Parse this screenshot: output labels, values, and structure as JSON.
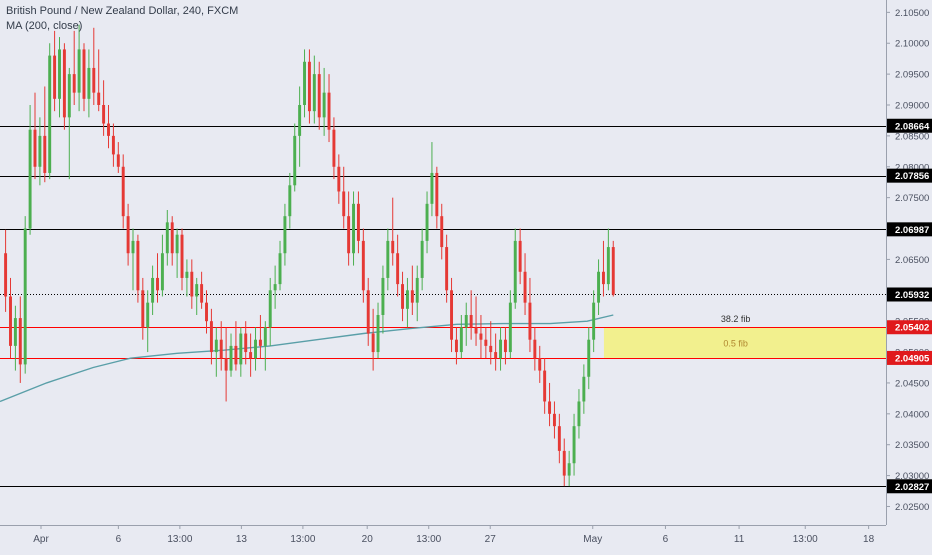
{
  "legend": {
    "symbol_line": "British Pound / New Zealand Dollar, 240, FXCM",
    "ma_line": "MA (200, close)"
  },
  "chart_data": {
    "type": "candlestick",
    "title": "British Pound / New Zealand Dollar, 240, FXCM",
    "indicator": "MA (200, close)",
    "ylim": [
      2.022,
      2.107
    ],
    "y_ticks": [
      2.105,
      2.1,
      2.095,
      2.09,
      2.085,
      2.08,
      2.075,
      2.07,
      2.065,
      2.06,
      2.055,
      2.05,
      2.045,
      2.04,
      2.035,
      2.03,
      2.025
    ],
    "y_tick_labels": [
      "2.10500",
      "2.10000",
      "2.09500",
      "2.09000",
      "2.08500",
      "2.08000",
      "2.07500",
      "2.07000",
      "2.06500",
      "2.06000",
      "2.05500",
      "2.05000",
      "2.04500",
      "2.04000",
      "2.03500",
      "2.03000",
      "2.02500"
    ],
    "x_ticks": [
      {
        "label": "Apr",
        "pos": 0.044
      },
      {
        "label": "6",
        "pos": 0.127
      },
      {
        "label": "13:00",
        "pos": 0.193
      },
      {
        "label": "13",
        "pos": 0.259
      },
      {
        "label": "13:00",
        "pos": 0.325
      },
      {
        "label": "20",
        "pos": 0.394
      },
      {
        "label": "13:00",
        "pos": 0.46
      },
      {
        "label": "27",
        "pos": 0.526
      },
      {
        "label": "May",
        "pos": 0.636
      },
      {
        "label": "6",
        "pos": 0.714
      },
      {
        "label": "11",
        "pos": 0.793
      },
      {
        "label": "13:00",
        "pos": 0.864
      },
      {
        "label": "18",
        "pos": 0.932
      }
    ],
    "horizontal_levels": [
      {
        "value": 2.08664,
        "label": "2.08664",
        "color": "#000000",
        "style": "solid"
      },
      {
        "value": 2.07856,
        "label": "2.07856",
        "color": "#000000",
        "style": "solid"
      },
      {
        "value": 2.06987,
        "label": "2.06987",
        "color": "#000000",
        "style": "solid"
      },
      {
        "value": 2.05932,
        "label": "2.05932",
        "color": "#000000",
        "style": "dotted"
      },
      {
        "value": 2.05402,
        "label": "2.05402",
        "color": "#ff0000",
        "style": "solid"
      },
      {
        "value": 2.04905,
        "label": "2.04905",
        "color": "#ff0000",
        "style": "solid"
      },
      {
        "value": 2.02827,
        "label": "2.02827",
        "color": "#000000",
        "style": "solid"
      }
    ],
    "fib_zone": {
      "top": 2.05402,
      "bottom": 2.04905,
      "x_start": 0.648,
      "x_end": 0.952,
      "color": "#f2f08e",
      "top_label": "38.2 fib",
      "mid_label": "0.5 fib"
    },
    "ma_points": [
      [
        0.0,
        2.042
      ],
      [
        0.05,
        2.045
      ],
      [
        0.1,
        2.0475
      ],
      [
        0.14,
        2.049
      ],
      [
        0.19,
        2.0498
      ],
      [
        0.24,
        2.0503
      ],
      [
        0.29,
        2.051
      ],
      [
        0.34,
        2.052
      ],
      [
        0.39,
        2.053
      ],
      [
        0.44,
        2.0538
      ],
      [
        0.49,
        2.0545
      ],
      [
        0.54,
        2.0546
      ],
      [
        0.59,
        2.0546
      ],
      [
        0.63,
        2.055
      ],
      [
        0.658,
        2.056
      ]
    ],
    "candles": [
      {
        "o": 2.066,
        "h": 2.0698,
        "l": 2.0565,
        "c": 2.059
      },
      {
        "o": 2.059,
        "h": 2.062,
        "l": 2.049,
        "c": 2.051
      },
      {
        "o": 2.051,
        "h": 2.0575,
        "l": 2.047,
        "c": 2.0555
      },
      {
        "o": 2.0555,
        "h": 2.059,
        "l": 2.045,
        "c": 2.048
      },
      {
        "o": 2.048,
        "h": 2.072,
        "l": 2.0465,
        "c": 2.07
      },
      {
        "o": 2.07,
        "h": 2.09,
        "l": 2.069,
        "c": 2.086
      },
      {
        "o": 2.086,
        "h": 2.092,
        "l": 2.078,
        "c": 2.08
      },
      {
        "o": 2.08,
        "h": 2.088,
        "l": 2.077,
        "c": 2.085
      },
      {
        "o": 2.085,
        "h": 2.093,
        "l": 2.0775,
        "c": 2.079
      },
      {
        "o": 2.079,
        "h": 2.1,
        "l": 2.078,
        "c": 2.098
      },
      {
        "o": 2.098,
        "h": 2.102,
        "l": 2.089,
        "c": 2.091
      },
      {
        "o": 2.091,
        "h": 2.101,
        "l": 2.088,
        "c": 2.099
      },
      {
        "o": 2.099,
        "h": 2.1,
        "l": 2.086,
        "c": 2.088
      },
      {
        "o": 2.088,
        "h": 2.096,
        "l": 2.078,
        "c": 2.095
      },
      {
        "o": 2.095,
        "h": 2.102,
        "l": 2.09,
        "c": 2.092
      },
      {
        "o": 2.092,
        "h": 2.103,
        "l": 2.089,
        "c": 2.099
      },
      {
        "o": 2.099,
        "h": 2.1,
        "l": 2.089,
        "c": 2.091
      },
      {
        "o": 2.091,
        "h": 2.099,
        "l": 2.088,
        "c": 2.096
      },
      {
        "o": 2.096,
        "h": 2.1025,
        "l": 2.09,
        "c": 2.092
      },
      {
        "o": 2.092,
        "h": 2.099,
        "l": 2.089,
        "c": 2.09
      },
      {
        "o": 2.09,
        "h": 2.094,
        "l": 2.085,
        "c": 2.087
      },
      {
        "o": 2.087,
        "h": 2.09,
        "l": 2.083,
        "c": 2.085
      },
      {
        "o": 2.085,
        "h": 2.087,
        "l": 2.08,
        "c": 2.082
      },
      {
        "o": 2.082,
        "h": 2.084,
        "l": 2.079,
        "c": 2.08
      },
      {
        "o": 2.08,
        "h": 2.082,
        "l": 2.07,
        "c": 2.072
      },
      {
        "o": 2.072,
        "h": 2.074,
        "l": 2.064,
        "c": 2.066
      },
      {
        "o": 2.066,
        "h": 2.07,
        "l": 2.06,
        "c": 2.068
      },
      {
        "o": 2.068,
        "h": 2.069,
        "l": 2.058,
        "c": 2.06
      },
      {
        "o": 2.06,
        "h": 2.062,
        "l": 2.052,
        "c": 2.054
      },
      {
        "o": 2.054,
        "h": 2.06,
        "l": 2.05,
        "c": 2.058
      },
      {
        "o": 2.058,
        "h": 2.064,
        "l": 2.056,
        "c": 2.062
      },
      {
        "o": 2.062,
        "h": 2.066,
        "l": 2.058,
        "c": 2.06
      },
      {
        "o": 2.06,
        "h": 2.069,
        "l": 2.059,
        "c": 2.066
      },
      {
        "o": 2.066,
        "h": 2.073,
        "l": 2.064,
        "c": 2.071
      },
      {
        "o": 2.071,
        "h": 2.072,
        "l": 2.064,
        "c": 2.066
      },
      {
        "o": 2.066,
        "h": 2.07,
        "l": 2.062,
        "c": 2.069
      },
      {
        "o": 2.069,
        "h": 2.07,
        "l": 2.06,
        "c": 2.062
      },
      {
        "o": 2.062,
        "h": 2.065,
        "l": 2.059,
        "c": 2.063
      },
      {
        "o": 2.063,
        "h": 2.065,
        "l": 2.057,
        "c": 2.059
      },
      {
        "o": 2.059,
        "h": 2.062,
        "l": 2.056,
        "c": 2.061
      },
      {
        "o": 2.061,
        "h": 2.063,
        "l": 2.057,
        "c": 2.058
      },
      {
        "o": 2.058,
        "h": 2.06,
        "l": 2.053,
        "c": 2.055
      },
      {
        "o": 2.055,
        "h": 2.057,
        "l": 2.048,
        "c": 2.05
      },
      {
        "o": 2.05,
        "h": 2.054,
        "l": 2.046,
        "c": 2.052
      },
      {
        "o": 2.052,
        "h": 2.055,
        "l": 2.047,
        "c": 2.049
      },
      {
        "o": 2.049,
        "h": 2.054,
        "l": 2.042,
        "c": 2.047
      },
      {
        "o": 2.047,
        "h": 2.053,
        "l": 2.046,
        "c": 2.051
      },
      {
        "o": 2.051,
        "h": 2.055,
        "l": 2.047,
        "c": 2.048
      },
      {
        "o": 2.048,
        "h": 2.054,
        "l": 2.046,
        "c": 2.053
      },
      {
        "o": 2.053,
        "h": 2.055,
        "l": 2.048,
        "c": 2.05
      },
      {
        "o": 2.05,
        "h": 2.053,
        "l": 2.046,
        "c": 2.049
      },
      {
        "o": 2.049,
        "h": 2.054,
        "l": 2.047,
        "c": 2.052
      },
      {
        "o": 2.052,
        "h": 2.056,
        "l": 2.049,
        "c": 2.051
      },
      {
        "o": 2.051,
        "h": 2.055,
        "l": 2.047,
        "c": 2.054
      },
      {
        "o": 2.054,
        "h": 2.062,
        "l": 2.051,
        "c": 2.06
      },
      {
        "o": 2.06,
        "h": 2.064,
        "l": 2.057,
        "c": 2.061
      },
      {
        "o": 2.061,
        "h": 2.068,
        "l": 2.06,
        "c": 2.066
      },
      {
        "o": 2.066,
        "h": 2.074,
        "l": 2.064,
        "c": 2.072
      },
      {
        "o": 2.072,
        "h": 2.079,
        "l": 2.07,
        "c": 2.077
      },
      {
        "o": 2.077,
        "h": 2.087,
        "l": 2.076,
        "c": 2.085
      },
      {
        "o": 2.085,
        "h": 2.093,
        "l": 2.08,
        "c": 2.09
      },
      {
        "o": 2.09,
        "h": 2.099,
        "l": 2.088,
        "c": 2.097
      },
      {
        "o": 2.097,
        "h": 2.099,
        "l": 2.087,
        "c": 2.089
      },
      {
        "o": 2.089,
        "h": 2.098,
        "l": 2.087,
        "c": 2.095
      },
      {
        "o": 2.095,
        "h": 2.097,
        "l": 2.086,
        "c": 2.088
      },
      {
        "o": 2.088,
        "h": 2.096,
        "l": 2.085,
        "c": 2.092
      },
      {
        "o": 2.092,
        "h": 2.095,
        "l": 2.084,
        "c": 2.086
      },
      {
        "o": 2.086,
        "h": 2.088,
        "l": 2.078,
        "c": 2.08
      },
      {
        "o": 2.08,
        "h": 2.082,
        "l": 2.074,
        "c": 2.076
      },
      {
        "o": 2.076,
        "h": 2.08,
        "l": 2.07,
        "c": 2.072
      },
      {
        "o": 2.072,
        "h": 2.076,
        "l": 2.064,
        "c": 2.066
      },
      {
        "o": 2.066,
        "h": 2.076,
        "l": 2.064,
        "c": 2.074
      },
      {
        "o": 2.074,
        "h": 2.076,
        "l": 2.066,
        "c": 2.068
      },
      {
        "o": 2.068,
        "h": 2.07,
        "l": 2.058,
        "c": 2.06
      },
      {
        "o": 2.06,
        "h": 2.062,
        "l": 2.051,
        "c": 2.053
      },
      {
        "o": 2.053,
        "h": 2.057,
        "l": 2.047,
        "c": 2.05
      },
      {
        "o": 2.05,
        "h": 2.058,
        "l": 2.049,
        "c": 2.056
      },
      {
        "o": 2.056,
        "h": 2.064,
        "l": 2.053,
        "c": 2.062
      },
      {
        "o": 2.062,
        "h": 2.07,
        "l": 2.06,
        "c": 2.068
      },
      {
        "o": 2.068,
        "h": 2.075,
        "l": 2.064,
        "c": 2.066
      },
      {
        "o": 2.066,
        "h": 2.069,
        "l": 2.059,
        "c": 2.061
      },
      {
        "o": 2.061,
        "h": 2.063,
        "l": 2.055,
        "c": 2.057
      },
      {
        "o": 2.057,
        "h": 2.062,
        "l": 2.054,
        "c": 2.06
      },
      {
        "o": 2.06,
        "h": 2.064,
        "l": 2.056,
        "c": 2.058
      },
      {
        "o": 2.058,
        "h": 2.064,
        "l": 2.055,
        "c": 2.062
      },
      {
        "o": 2.062,
        "h": 2.07,
        "l": 2.06,
        "c": 2.068
      },
      {
        "o": 2.068,
        "h": 2.076,
        "l": 2.066,
        "c": 2.074
      },
      {
        "o": 2.074,
        "h": 2.084,
        "l": 2.072,
        "c": 2.079
      },
      {
        "o": 2.079,
        "h": 2.08,
        "l": 2.07,
        "c": 2.072
      },
      {
        "o": 2.072,
        "h": 2.074,
        "l": 2.065,
        "c": 2.067
      },
      {
        "o": 2.067,
        "h": 2.069,
        "l": 2.058,
        "c": 2.06
      },
      {
        "o": 2.06,
        "h": 2.062,
        "l": 2.05,
        "c": 2.052
      },
      {
        "o": 2.052,
        "h": 2.054,
        "l": 2.048,
        "c": 2.05
      },
      {
        "o": 2.05,
        "h": 2.056,
        "l": 2.049,
        "c": 2.054
      },
      {
        "o": 2.054,
        "h": 2.058,
        "l": 2.051,
        "c": 2.056
      },
      {
        "o": 2.056,
        "h": 2.06,
        "l": 2.052,
        "c": 2.054
      },
      {
        "o": 2.054,
        "h": 2.059,
        "l": 2.051,
        "c": 2.053
      },
      {
        "o": 2.053,
        "h": 2.056,
        "l": 2.049,
        "c": 2.052
      },
      {
        "o": 2.052,
        "h": 2.054,
        "l": 2.049,
        "c": 2.051
      },
      {
        "o": 2.051,
        "h": 2.055,
        "l": 2.048,
        "c": 2.05
      },
      {
        "o": 2.05,
        "h": 2.053,
        "l": 2.047,
        "c": 2.049
      },
      {
        "o": 2.049,
        "h": 2.054,
        "l": 2.047,
        "c": 2.052
      },
      {
        "o": 2.052,
        "h": 2.054,
        "l": 2.048,
        "c": 2.05
      },
      {
        "o": 2.05,
        "h": 2.06,
        "l": 2.049,
        "c": 2.058
      },
      {
        "o": 2.058,
        "h": 2.07,
        "l": 2.057,
        "c": 2.068
      },
      {
        "o": 2.068,
        "h": 2.07,
        "l": 2.061,
        "c": 2.063
      },
      {
        "o": 2.063,
        "h": 2.066,
        "l": 2.056,
        "c": 2.058
      },
      {
        "o": 2.058,
        "h": 2.062,
        "l": 2.05,
        "c": 2.052
      },
      {
        "o": 2.052,
        "h": 2.054,
        "l": 2.047,
        "c": 2.049
      },
      {
        "o": 2.049,
        "h": 2.051,
        "l": 2.045,
        "c": 2.047
      },
      {
        "o": 2.047,
        "h": 2.049,
        "l": 2.04,
        "c": 2.042
      },
      {
        "o": 2.042,
        "h": 2.045,
        "l": 2.038,
        "c": 2.04
      },
      {
        "o": 2.04,
        "h": 2.042,
        "l": 2.036,
        "c": 2.038
      },
      {
        "o": 2.038,
        "h": 2.04,
        "l": 2.032,
        "c": 2.034
      },
      {
        "o": 2.034,
        "h": 2.036,
        "l": 2.0283,
        "c": 2.03
      },
      {
        "o": 2.03,
        "h": 2.034,
        "l": 2.0283,
        "c": 2.032
      },
      {
        "o": 2.032,
        "h": 2.04,
        "l": 2.03,
        "c": 2.038
      },
      {
        "o": 2.038,
        "h": 2.044,
        "l": 2.036,
        "c": 2.042
      },
      {
        "o": 2.042,
        "h": 2.048,
        "l": 2.04,
        "c": 2.046
      },
      {
        "o": 2.046,
        "h": 2.054,
        "l": 2.044,
        "c": 2.052
      },
      {
        "o": 2.052,
        "h": 2.06,
        "l": 2.05,
        "c": 2.058
      },
      {
        "o": 2.058,
        "h": 2.065,
        "l": 2.056,
        "c": 2.063
      },
      {
        "o": 2.063,
        "h": 2.068,
        "l": 2.059,
        "c": 2.061
      },
      {
        "o": 2.061,
        "h": 2.07,
        "l": 2.06,
        "c": 2.067
      },
      {
        "o": 2.067,
        "h": 2.068,
        "l": 2.059,
        "c": 2.0593
      }
    ],
    "candle_x_start": 0.006,
    "candle_x_end": 0.658,
    "up_color": "#4caf50",
    "down_color": "#e53935",
    "ma_color": "#5a9fa8",
    "grid": false
  }
}
